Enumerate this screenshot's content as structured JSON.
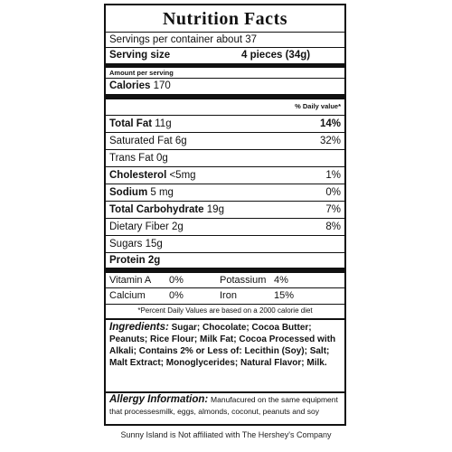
{
  "title": "Nutrition Facts",
  "servings_per_container": "Servings per container about 37",
  "serving_size": {
    "label": "Serving size",
    "value": "4 pieces (34g)"
  },
  "amount_per_serving": "Amount per serving",
  "calories": {
    "label": "Calories",
    "value": "170"
  },
  "daily_value_header": "% Daily value*",
  "nutrients": [
    {
      "label": "Total Fat",
      "amount": "11g",
      "dv": "14%",
      "bold": true
    },
    {
      "label": "Saturated Fat",
      "amount": "6g",
      "dv": "32%",
      "bold": false
    },
    {
      "label": "Trans Fat",
      "amount": "0g",
      "dv": "",
      "bold": false
    },
    {
      "label": "Cholesterol",
      "amount": "<5mg",
      "dv": "1%",
      "bold": true
    },
    {
      "label": "Sodium",
      "amount": "5 mg",
      "dv": "0%",
      "bold": true
    },
    {
      "label": "Total Carbohydrate",
      "amount": "19g",
      "dv": "7%",
      "bold": true
    },
    {
      "label": "Dietary Fiber",
      "amount": "2g",
      "dv": "8%",
      "bold": false
    },
    {
      "label": "Sugars",
      "amount": "15g",
      "dv": "",
      "bold": false
    },
    {
      "label": "Protein",
      "amount": "2g",
      "dv": "",
      "bold": true
    }
  ],
  "vitamins": [
    {
      "name": "Vitamin A",
      "value": "0%",
      "name2": "Potassium",
      "value2": "4%"
    },
    {
      "name": "Calcium",
      "value": "0%",
      "name2": "Iron",
      "value2": "15%"
    }
  ],
  "footnote": "*Percent Daily Values are based on a 2000 calorie diet",
  "ingredients": {
    "label": "Ingredients:",
    "text": "Sugar; Chocolate; Cocoa Butter; Peanuts; Rice Flour; Milk Fat; Cocoa Processed with Alkali; Contains 2% or Less of: Lecithin (Soy); Salt; Malt Extract; Monoglycerides; Natural Flavor; Milk."
  },
  "allergy": {
    "label": "Allergy Information:",
    "text": "Manufacured on the same equipment that processesmilk, eggs, almonds, coconut, peanuts and soy"
  },
  "disclaimer": "Sunny Island is Not affiliated with The Hershey's Company"
}
